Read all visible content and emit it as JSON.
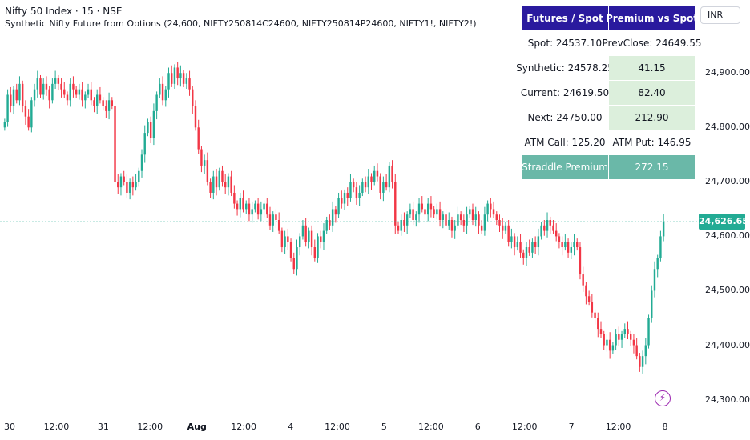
{
  "header": {
    "title": "Nifty 50 Index · 15 · NSE",
    "subtitle": "Synthetic Nifty Future from Options (24,600, NIFTY250814C24600, NIFTY250814P24600, NIFTY1!, NIFTY2!)"
  },
  "currency": "INR",
  "table": {
    "headers": [
      "Futures / Spot",
      "Premium vs Spot"
    ],
    "rows": [
      {
        "a": "Spot: 24537.10",
        "b": "PrevClose: 24649.55",
        "style": "plain"
      },
      {
        "a": "Synthetic: 24578.25",
        "b": "41.15",
        "style": "green"
      },
      {
        "a": "Current: 24619.50",
        "b": "82.40",
        "style": "green"
      },
      {
        "a": "Next: 24750.00",
        "b": "212.90",
        "style": "green"
      },
      {
        "a": "ATM Call: 125.20",
        "b": "ATM Put: 146.95",
        "style": "plain"
      },
      {
        "a": "Straddle Premium",
        "b": "272.15",
        "style": "teal"
      }
    ]
  },
  "colors": {
    "up": "#22ab94",
    "down": "#f23645",
    "header_bg": "#2a1a9e",
    "last_price": "#22ab94",
    "event": "#9c27b0"
  },
  "icons": {
    "event": "lightning-icon"
  },
  "chart_data": {
    "type": "candlestick",
    "symbol": "Nifty 50 Index",
    "interval": "15",
    "exchange": "NSE",
    "last_price": "24,626.65",
    "last_value": 24626.65,
    "y_ticks": [
      {
        "label": "24,900.00",
        "value": 24900
      },
      {
        "label": "24,800.00",
        "value": 24800
      },
      {
        "label": "24,700.00",
        "value": 24700
      },
      {
        "label": "24,600.00",
        "value": 24600
      },
      {
        "label": "24,500.00",
        "value": 24500
      },
      {
        "label": "24,400.00",
        "value": 24400
      },
      {
        "label": "24,300.00",
        "value": 24300
      }
    ],
    "ylim": [
      24270,
      24990
    ],
    "x_ticks": [
      {
        "label": "30",
        "bold": false
      },
      {
        "label": "12:00",
        "bold": false
      },
      {
        "label": "31",
        "bold": false
      },
      {
        "label": "12:00",
        "bold": false
      },
      {
        "label": "Aug",
        "bold": true
      },
      {
        "label": "12:00",
        "bold": false
      },
      {
        "label": "4",
        "bold": false
      },
      {
        "label": "12:00",
        "bold": false
      },
      {
        "label": "5",
        "bold": false
      },
      {
        "label": "12:00",
        "bold": false
      },
      {
        "label": "6",
        "bold": false
      },
      {
        "label": "12:00",
        "bold": false
      },
      {
        "label": "7",
        "bold": false
      },
      {
        "label": "12:00",
        "bold": false
      },
      {
        "label": "8",
        "bold": false
      }
    ],
    "closes": [
      24810,
      24860,
      24840,
      24870,
      24850,
      24880,
      24840,
      24820,
      24800,
      24850,
      24870,
      24890,
      24860,
      24880,
      24870,
      24850,
      24880,
      24890,
      24880,
      24870,
      24860,
      24850,
      24880,
      24870,
      24860,
      24870,
      24850,
      24860,
      24870,
      24850,
      24840,
      24860,
      24850,
      24840,
      24830,
      24850,
      24840,
      24700,
      24690,
      24710,
      24700,
      24680,
      24700,
      24690,
      24700,
      24720,
      24750,
      24790,
      24810,
      24780,
      24830,
      24860,
      24880,
      24850,
      24870,
      24900,
      24880,
      24910,
      24890,
      24900,
      24880,
      24890,
      24870,
      24840,
      24800,
      24760,
      24730,
      24740,
      24700,
      24680,
      24710,
      24690,
      24720,
      24700,
      24690,
      24710,
      24680,
      24660,
      24650,
      24670,
      24650,
      24660,
      24640,
      24650,
      24660,
      24640,
      24650,
      24660,
      24640,
      24620,
      24640,
      24630,
      24610,
      24580,
      24600,
      24590,
      24560,
      24540,
      24580,
      24600,
      24620,
      24590,
      24610,
      24580,
      24560,
      24600,
      24590,
      24610,
      24630,
      24620,
      24650,
      24640,
      24670,
      24660,
      24680,
      24670,
      24700,
      24690,
      24670,
      24680,
      24700,
      24690,
      24710,
      24700,
      24720,
      24710,
      24680,
      24700,
      24690,
      24730,
      24700,
      24620,
      24610,
      24630,
      24620,
      24640,
      24650,
      24630,
      24640,
      24660,
      24650,
      24640,
      24660,
      24650,
      24640,
      24650,
      24630,
      24640,
      24620,
      24630,
      24610,
      24620,
      24640,
      24630,
      24620,
      24640,
      24650,
      24630,
      24640,
      24620,
      24610,
      24640,
      24660,
      24650,
      24640,
      24630,
      24620,
      24610,
      24620,
      24590,
      24600,
      24580,
      24590,
      24570,
      24560,
      24580,
      24570,
      24590,
      24580,
      24600,
      24620,
      24610,
      24630,
      24620,
      24610,
      24600,
      24590,
      24580,
      24590,
      24570,
      24580,
      24590,
      24580,
      24530,
      24510,
      24490,
      24480,
      24460,
      24450,
      24430,
      24420,
      24400,
      24410,
      24390,
      24400,
      24420,
      24410,
      24420,
      24430,
      24420,
      24410,
      24400,
      24380,
      24360,
      24380,
      24400,
      24450,
      24500,
      24540,
      24560,
      24600,
      24626.65
    ]
  }
}
